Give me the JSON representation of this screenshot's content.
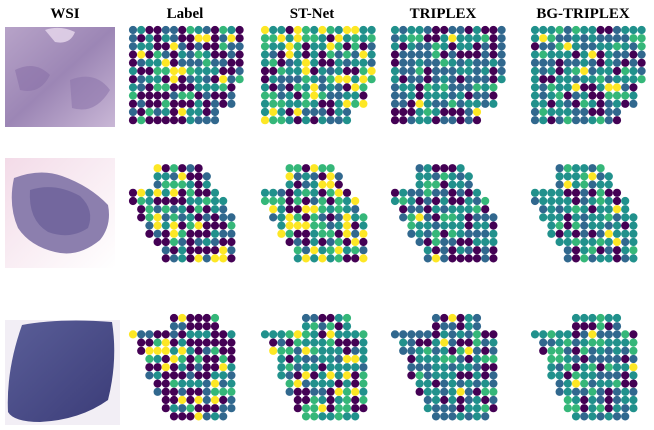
{
  "columns": [
    {
      "key": "wsi",
      "label": "WSI"
    },
    {
      "key": "label",
      "label": "Label"
    },
    {
      "key": "stnet",
      "label": "ST-Net"
    },
    {
      "key": "triplex",
      "label": "TRIPLEX"
    },
    {
      "key": "bgtriplex",
      "label": "BG-TRIPLEX"
    }
  ],
  "rows": [
    {
      "sample": 1
    },
    {
      "sample": 2
    },
    {
      "sample": 3
    }
  ],
  "colors": {
    "viridis_dark": "#440154",
    "viridis_blue": "#31688e",
    "viridis_teal": "#21918c",
    "viridis_green": "#35b779",
    "viridis_yellow": "#fde725",
    "tissue_pink": "#d9b3cf",
    "tissue_purple": "#6f6aa0",
    "tissue_dark": "#3f3f80"
  }
}
